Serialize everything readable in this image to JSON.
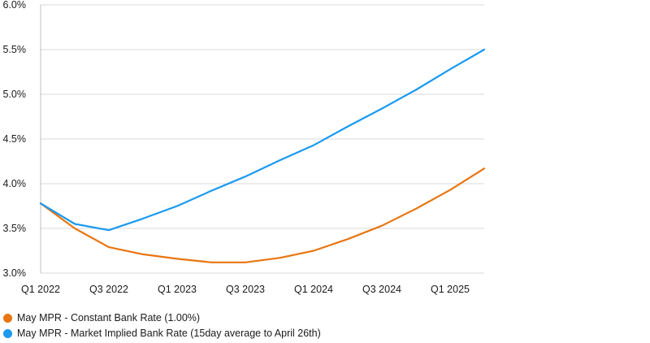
{
  "chart_data": {
    "type": "line",
    "x": [
      "Q1 2022",
      "Q2 2022",
      "Q3 2022",
      "Q4 2022",
      "Q1 2023",
      "Q2 2023",
      "Q3 2023",
      "Q4 2023",
      "Q1 2024",
      "Q2 2024",
      "Q3 2024",
      "Q4 2024",
      "Q1 2025",
      "Q2 2025"
    ],
    "x_tick_labels": [
      "Q1 2022",
      "Q3 2022",
      "Q1 2023",
      "Q3 2023",
      "Q1 2024",
      "Q3 2024",
      "Q1 2025"
    ],
    "y_tick_labels": [
      "6.0%",
      "5.5%",
      "5.0%",
      "4.5%",
      "4.0%",
      "3.5%",
      "3.0%"
    ],
    "ylim": [
      3.0,
      6.0
    ],
    "y_unit": "%",
    "grid": "horizontal",
    "legend_position": "bottom-left",
    "series": [
      {
        "name": "May MPR - Constant Bank Rate (1.00%)",
        "color": "#e87511",
        "values": [
          3.78,
          3.5,
          3.29,
          3.21,
          3.16,
          3.12,
          3.12,
          3.17,
          3.25,
          3.38,
          3.53,
          3.72,
          3.93,
          4.17
        ]
      },
      {
        "name": "May MPR - Market Implied Bank Rate (15day average to April 26th)",
        "color": "#1a9af0",
        "values": [
          3.78,
          3.55,
          3.48,
          3.61,
          3.75,
          3.92,
          4.08,
          4.26,
          4.43,
          4.64,
          4.84,
          5.05,
          5.28,
          5.5
        ]
      }
    ]
  }
}
